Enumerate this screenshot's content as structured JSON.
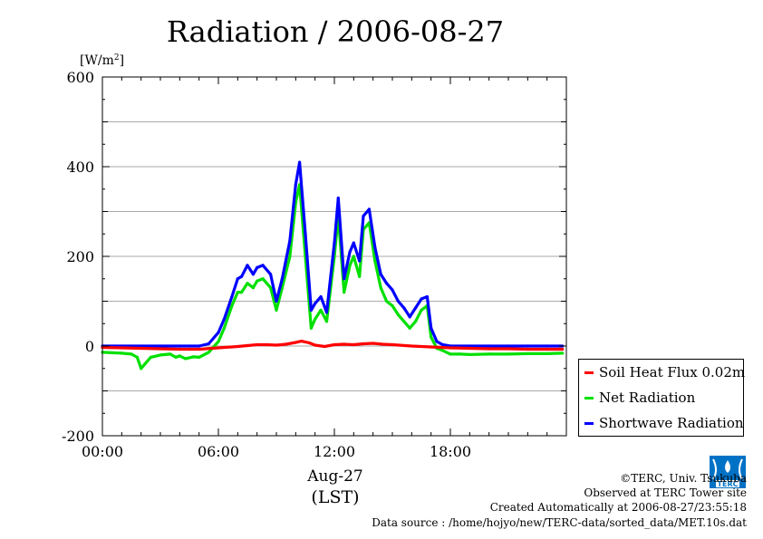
{
  "chart_data": {
    "type": "line",
    "title": "Radiation / 2006-08-27",
    "ylabel_unit": "[W/m",
    "ylabel_sup": "2",
    "ylabel_close": "]",
    "ylim": [
      -200,
      600
    ],
    "yticks": [
      -200,
      0,
      200,
      400,
      600
    ],
    "ytick_labels": [
      "-200",
      "0",
      "200",
      "400",
      "600"
    ],
    "xlim": [
      0,
      24
    ],
    "xticks": [
      0,
      6,
      12,
      18
    ],
    "xtick_labels": [
      "00:00",
      "06:00",
      "12:00",
      "18:00"
    ],
    "xlabel_date": "Aug-27",
    "xlabel": "(LST)",
    "grid": true,
    "legend_position": "right",
    "series": [
      {
        "name": "Soil Heat Flux 0.02m",
        "color": "#ff0000",
        "x": [
          0,
          1,
          2,
          3,
          4,
          5,
          6,
          7,
          7.5,
          8,
          8.5,
          9,
          9.5,
          10,
          10.3,
          10.7,
          11,
          11.5,
          12,
          12.5,
          13,
          13.5,
          14,
          14.5,
          15,
          16,
          17,
          18,
          19,
          20,
          21,
          22,
          23,
          23.8
        ],
        "y": [
          -3,
          -4,
          -5,
          -6,
          -7,
          -7,
          -4,
          -1,
          1,
          3,
          3,
          2,
          4,
          8,
          11,
          7,
          2,
          -1,
          3,
          4,
          3,
          5,
          6,
          4,
          3,
          0,
          -2,
          -4,
          -5,
          -6,
          -6,
          -7,
          -7,
          -7
        ]
      },
      {
        "name": "Net Radiation",
        "color": "#00e000",
        "x": [
          0,
          0.5,
          1,
          1.5,
          1.8,
          2,
          2.2,
          2.5,
          3,
          3.5,
          3.8,
          4,
          4.3,
          4.7,
          5,
          5.5,
          6,
          6.3,
          6.7,
          7,
          7.2,
          7.5,
          7.8,
          8,
          8.3,
          8.7,
          9,
          9.3,
          9.7,
          10,
          10.2,
          10.5,
          10.8,
          11,
          11.3,
          11.6,
          12,
          12.2,
          12.5,
          12.8,
          13,
          13.3,
          13.5,
          13.8,
          14.1,
          14.4,
          14.7,
          15,
          15.3,
          15.6,
          15.9,
          16.2,
          16.5,
          16.8,
          17,
          17.3,
          17.6,
          18,
          18.5,
          19,
          20,
          21,
          22,
          23,
          23.8
        ],
        "y": [
          -14,
          -15,
          -16,
          -18,
          -25,
          -50,
          -40,
          -25,
          -20,
          -18,
          -25,
          -22,
          -28,
          -24,
          -25,
          -14,
          10,
          40,
          90,
          120,
          120,
          140,
          130,
          145,
          150,
          130,
          80,
          130,
          200,
          320,
          360,
          200,
          40,
          60,
          80,
          55,
          200,
          290,
          120,
          180,
          200,
          155,
          260,
          275,
          190,
          130,
          100,
          90,
          70,
          55,
          40,
          55,
          80,
          90,
          20,
          -5,
          -10,
          -18,
          -18,
          -19,
          -18,
          -18,
          -17,
          -17,
          -16
        ]
      },
      {
        "name": "Shortwave Radiation",
        "color": "#0000ff",
        "x": [
          0,
          1,
          2,
          3,
          4,
          4.5,
          5,
          5.5,
          6,
          6.3,
          6.7,
          7,
          7.2,
          7.5,
          7.8,
          8,
          8.3,
          8.7,
          9,
          9.3,
          9.7,
          10,
          10.2,
          10.5,
          10.8,
          11,
          11.3,
          11.6,
          12,
          12.2,
          12.5,
          12.8,
          13,
          13.3,
          13.5,
          13.8,
          14.1,
          14.4,
          14.7,
          15,
          15.3,
          15.6,
          15.9,
          16.2,
          16.5,
          16.8,
          17,
          17.3,
          17.6,
          18,
          19,
          20,
          21,
          22,
          23,
          23.8
        ],
        "y": [
          0,
          0,
          0,
          0,
          0,
          0,
          0,
          5,
          30,
          60,
          110,
          150,
          155,
          180,
          160,
          175,
          180,
          160,
          100,
          150,
          235,
          360,
          410,
          250,
          80,
          95,
          110,
          75,
          230,
          330,
          150,
          210,
          230,
          190,
          290,
          305,
          220,
          160,
          140,
          125,
          100,
          85,
          65,
          85,
          105,
          110,
          40,
          10,
          3,
          0,
          0,
          0,
          0,
          0,
          0,
          0
        ]
      }
    ]
  },
  "credits": {
    "line1": "©TERC, Univ. Tsukuba",
    "line2": "Observed at TERC Tower site",
    "line3": "Created Automatically at 2006-08-27/23:55:18",
    "line4": "Data source : /home/hojyo/new/TERC-data/sorted_data/MET.10s.dat"
  },
  "logo": {
    "text": "TERC",
    "color": "#0072c6"
  }
}
